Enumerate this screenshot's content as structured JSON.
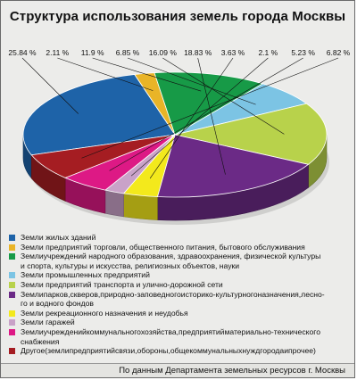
{
  "title": "Структура использования земель города Москвы",
  "footer": "По данным Департамента земельных ресурсов г. Москвы",
  "chart_data": {
    "type": "pie",
    "title": "Структура использования земель города Москвы",
    "slices": [
      {
        "label": "Земли жилых зданий",
        "value": 25.84,
        "value_text": "25.84 %",
        "color": "#1e63a8"
      },
      {
        "label": "Земли предприятий торговли, общественного питания, бытового обслуживания",
        "value": 2.11,
        "value_text": "2.11 %",
        "color": "#e9b427"
      },
      {
        "label": "Земли учреждений народного образования, здравоохранения, физической культуры и спорта, культуры и искусства, религиозных объектов, науки",
        "value": 11.9,
        "value_text": "11.9 %",
        "color": "#179a47"
      },
      {
        "label": "Земли промышленных предприятий",
        "value": 6.85,
        "value_text": "6.85 %",
        "color": "#7cc4e4"
      },
      {
        "label": "Земли предприятий транспорта и улично-дорожной сети",
        "value": 16.09,
        "value_text": "16.09 %",
        "color": "#b8d24b"
      },
      {
        "label": "Земли парков, скверов, природно-заповедного историко-культурного назначения, лесо- и водного фондов",
        "value": 18.83,
        "value_text": "18.83 %",
        "color": "#6b2a86"
      },
      {
        "label": "Земли рекреационного назначения и неудобья",
        "value": 3.63,
        "value_text": "3.63 %",
        "color": "#f3e91c"
      },
      {
        "label": "Земли гаражей",
        "value": 2.1,
        "value_text": "2.1 %",
        "color": "#c9a2c8"
      },
      {
        "label": "Земли учреждений коммунального хозяйства, предприятий материально-технического снабжения",
        "value": 5.23,
        "value_text": "5.23 %",
        "color": "#dd1985"
      },
      {
        "label": "Другое (земли предприятий связи, обороны, общекоммунальных нужд города и прочее)",
        "value": 6.82,
        "value_text": "6.82 %",
        "color": "#a51d22"
      }
    ]
  },
  "legend_lines": [
    {
      "text": "Земли жилых зданий",
      "color": "#1e63a8"
    },
    {
      "text": "Земли предприятий торговли, общественного питания, бытового обслуживания",
      "color": "#e9b427"
    },
    {
      "text": "Землиучреждений народного образования, здравоохранения, физической культуры",
      "color": "#179a47"
    },
    {
      "text": "и спорта, культуры и искусства, религиозных объектов, науки",
      "color": null
    },
    {
      "text": "Земли промышленных предприятий",
      "color": "#7cc4e4"
    },
    {
      "text": "Земли предприятий транспорта и улично-дорожной сети",
      "color": "#b8d24b"
    },
    {
      "text": "Землипарков,скверов,природно-заповедногоисторико-культурногоназначения,лесно-",
      "color": "#6b2a86"
    },
    {
      "text": "го и водного фондов",
      "color": null
    },
    {
      "text": "Земли рекреационного назначения и неудобья",
      "color": "#f3e91c"
    },
    {
      "text": "Земли гаражей",
      "color": "#c9a2c8"
    },
    {
      "text": "Землиучрежденийкоммунальногохозяйства,предприятийматериально-технического",
      "color": "#dd1985"
    },
    {
      "text": "снабжения",
      "color": null
    },
    {
      "text": "Другое(землипредприятийсвязи,обороны,общекоммунальныхнуждгородаипрочее)",
      "color": "#a51d22"
    }
  ]
}
